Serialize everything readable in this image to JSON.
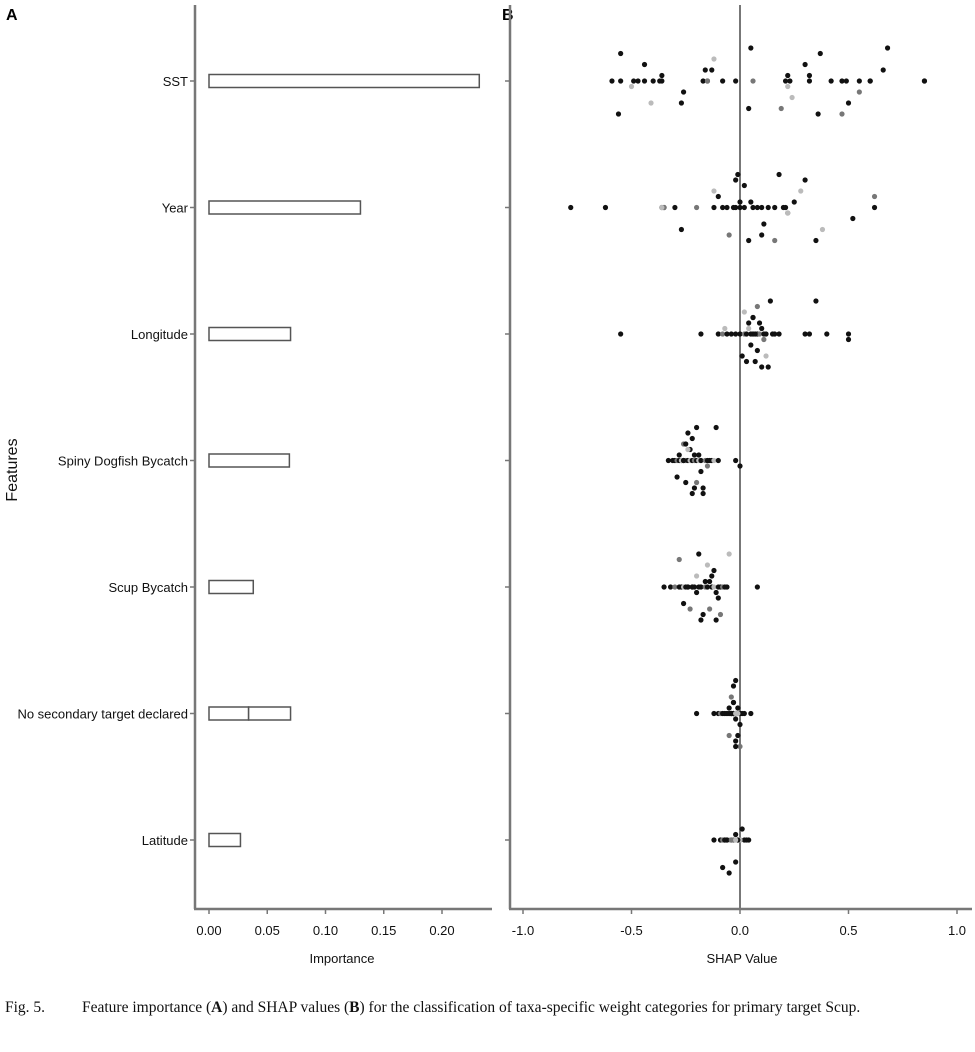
{
  "chart_data": [
    {
      "panel": "A",
      "type": "bar",
      "orientation": "horizontal",
      "xlabel": "Importance",
      "ylabel": "Features",
      "xlim": [
        0,
        0.235
      ],
      "xticks": [
        "0.00",
        "0.05",
        "0.10",
        "0.15",
        "0.20"
      ],
      "xtick_values": [
        0,
        0.05,
        0.1,
        0.15,
        0.2
      ],
      "categories": [
        "SST",
        "Year",
        "Longitude",
        "Spiny Dogfish Bycatch",
        "Scup Bycatch",
        "No secondary target declared",
        "Latitude"
      ],
      "values": [
        0.232,
        0.13,
        0.07,
        0.069,
        0.038,
        0.07,
        0.027
      ],
      "segments": [
        [
          0.232
        ],
        [
          0.13
        ],
        [
          0.07
        ],
        [
          0.069
        ],
        [
          0.038
        ],
        [
          0.034,
          0.036
        ],
        [
          0.027
        ]
      ]
    },
    {
      "panel": "B",
      "type": "scatter",
      "xlabel": "SHAP Value",
      "xlim": [
        -1.1,
        1.05
      ],
      "xticks": [
        "-1.0",
        "-0.5",
        "0.0",
        "0.5",
        "1.0"
      ],
      "xtick_values": [
        -1.0,
        -0.5,
        0.0,
        0.5,
        1.0
      ],
      "categories": [
        "SST",
        "Year",
        "Longitude",
        "Spiny Dogfish Bycatch",
        "Scup Bycatch",
        "No secondary target declared",
        "Latitude"
      ],
      "shades": {
        "k": "#111111",
        "g": "#777777",
        "l": "#bbbbbb"
      },
      "points": [
        [
          [
            -0.59,
            "k"
          ],
          [
            -0.55,
            "k"
          ],
          [
            -0.49,
            "k"
          ],
          [
            -0.47,
            "k"
          ],
          [
            -0.44,
            "k"
          ],
          [
            -0.4,
            "k"
          ],
          [
            -0.37,
            "k"
          ],
          [
            -0.36,
            "k"
          ],
          [
            -0.27,
            "k"
          ],
          [
            -0.17,
            "k"
          ],
          [
            -0.15,
            "k"
          ],
          [
            -0.13,
            "k"
          ],
          [
            -0.08,
            "k"
          ],
          [
            -0.02,
            "k"
          ],
          [
            0.04,
            "k"
          ],
          [
            0.06,
            "g"
          ],
          [
            0.21,
            "k"
          ],
          [
            0.22,
            "k"
          ],
          [
            0.23,
            "k"
          ],
          [
            0.32,
            "k"
          ],
          [
            0.36,
            "k"
          ],
          [
            0.42,
            "k"
          ],
          [
            0.47,
            "k"
          ],
          [
            0.49,
            "k"
          ],
          [
            0.55,
            "k"
          ],
          [
            0.6,
            "k"
          ],
          [
            0.68,
            "k"
          ],
          [
            0.85,
            "k"
          ],
          [
            0.85,
            "k"
          ],
          [
            -0.5,
            "l"
          ],
          [
            -0.36,
            "k"
          ],
          [
            -0.44,
            "k"
          ],
          [
            -0.55,
            "k"
          ],
          [
            -0.56,
            "k"
          ],
          [
            -0.41,
            "l"
          ],
          [
            -0.26,
            "k"
          ],
          [
            -0.15,
            "g"
          ],
          [
            -0.16,
            "k"
          ],
          [
            -0.12,
            "l"
          ],
          [
            0.05,
            "k"
          ],
          [
            0.19,
            "g"
          ],
          [
            0.24,
            "l"
          ],
          [
            0.22,
            "l"
          ],
          [
            0.32,
            "k"
          ],
          [
            0.3,
            "k"
          ],
          [
            0.37,
            "k"
          ],
          [
            0.47,
            "g"
          ],
          [
            0.5,
            "k"
          ],
          [
            0.55,
            "g"
          ],
          [
            0.6,
            "k"
          ],
          [
            0.66,
            "k"
          ]
        ],
        [
          [
            -0.78,
            "k"
          ],
          [
            -0.62,
            "l"
          ],
          [
            -0.62,
            "k"
          ],
          [
            -0.36,
            "k"
          ],
          [
            -0.35,
            "k"
          ],
          [
            -0.35,
            "g"
          ],
          [
            -0.36,
            "l"
          ],
          [
            -0.3,
            "k"
          ],
          [
            -0.27,
            "k"
          ],
          [
            -0.2,
            "g"
          ],
          [
            -0.12,
            "k"
          ],
          [
            -0.1,
            "k"
          ],
          [
            -0.08,
            "k"
          ],
          [
            -0.06,
            "k"
          ],
          [
            -0.05,
            "g"
          ],
          [
            -0.03,
            "k"
          ],
          [
            -0.02,
            "k"
          ],
          [
            0.0,
            "k"
          ],
          [
            0.0,
            "k"
          ],
          [
            0.02,
            "k"
          ],
          [
            0.04,
            "k"
          ],
          [
            0.06,
            "k"
          ],
          [
            0.08,
            "k"
          ],
          [
            0.1,
            "k"
          ],
          [
            0.13,
            "k"
          ],
          [
            0.16,
            "k"
          ],
          [
            0.18,
            "k"
          ],
          [
            0.2,
            "k"
          ],
          [
            0.21,
            "k"
          ],
          [
            0.22,
            "g"
          ],
          [
            0.25,
            "k"
          ],
          [
            0.28,
            "l"
          ],
          [
            0.3,
            "k"
          ],
          [
            0.35,
            "k"
          ],
          [
            0.38,
            "l"
          ],
          [
            0.52,
            "k"
          ],
          [
            0.62,
            "k"
          ],
          [
            0.62,
            "g"
          ],
          [
            0.02,
            "k"
          ],
          [
            -0.01,
            "k"
          ],
          [
            0.1,
            "k"
          ],
          [
            0.11,
            "k"
          ],
          [
            0.22,
            "l"
          ],
          [
            0.05,
            "k"
          ],
          [
            -0.12,
            "l"
          ],
          [
            -0.02,
            "k"
          ],
          [
            0.16,
            "g"
          ]
        ],
        [
          [
            -0.55,
            "k"
          ],
          [
            -0.18,
            "k"
          ],
          [
            -0.1,
            "k"
          ],
          [
            -0.08,
            "g"
          ],
          [
            -0.06,
            "k"
          ],
          [
            -0.04,
            "k"
          ],
          [
            -0.02,
            "k"
          ],
          [
            0.0,
            "k"
          ],
          [
            0.01,
            "k"
          ],
          [
            0.02,
            "g"
          ],
          [
            0.03,
            "k"
          ],
          [
            0.04,
            "k"
          ],
          [
            0.05,
            "k"
          ],
          [
            0.06,
            "k"
          ],
          [
            0.07,
            "k"
          ],
          [
            0.08,
            "k"
          ],
          [
            0.09,
            "g"
          ],
          [
            0.1,
            "k"
          ],
          [
            0.11,
            "k"
          ],
          [
            0.12,
            "k"
          ],
          [
            0.13,
            "k"
          ],
          [
            0.15,
            "k"
          ],
          [
            0.16,
            "k"
          ],
          [
            0.18,
            "k"
          ],
          [
            0.3,
            "k"
          ],
          [
            0.32,
            "k"
          ],
          [
            0.35,
            "k"
          ],
          [
            0.4,
            "k"
          ],
          [
            0.5,
            "k"
          ],
          [
            0.5,
            "k"
          ],
          [
            0.04,
            "l"
          ],
          [
            0.06,
            "k"
          ],
          [
            0.08,
            "g"
          ],
          [
            0.1,
            "k"
          ],
          [
            0.12,
            "l"
          ],
          [
            0.05,
            "k"
          ],
          [
            0.07,
            "k"
          ],
          [
            0.09,
            "k"
          ],
          [
            0.02,
            "l"
          ],
          [
            0.14,
            "k"
          ],
          [
            0.03,
            "k"
          ],
          [
            0.08,
            "k"
          ],
          [
            0.11,
            "g"
          ],
          [
            -0.07,
            "l"
          ],
          [
            0.06,
            "k"
          ]
        ],
        [
          [
            -0.33,
            "k"
          ],
          [
            -0.31,
            "k"
          ],
          [
            -0.3,
            "k"
          ],
          [
            -0.29,
            "g"
          ],
          [
            -0.28,
            "k"
          ],
          [
            -0.27,
            "k"
          ],
          [
            -0.27,
            "l"
          ],
          [
            -0.26,
            "k"
          ],
          [
            -0.25,
            "k"
          ],
          [
            -0.25,
            "g"
          ],
          [
            -0.24,
            "k"
          ],
          [
            -0.23,
            "k"
          ],
          [
            -0.23,
            "l"
          ],
          [
            -0.22,
            "k"
          ],
          [
            -0.21,
            "k"
          ],
          [
            -0.21,
            "g"
          ],
          [
            -0.2,
            "k"
          ],
          [
            -0.19,
            "k"
          ],
          [
            -0.19,
            "l"
          ],
          [
            -0.18,
            "k"
          ],
          [
            -0.17,
            "k"
          ],
          [
            -0.16,
            "g"
          ],
          [
            -0.15,
            "k"
          ],
          [
            -0.14,
            "k"
          ],
          [
            -0.13,
            "k"
          ],
          [
            -0.12,
            "l"
          ],
          [
            -0.11,
            "k"
          ],
          [
            -0.1,
            "k"
          ],
          [
            -0.02,
            "k"
          ],
          [
            0.0,
            "k"
          ],
          [
            -0.28,
            "k"
          ],
          [
            -0.26,
            "g"
          ],
          [
            -0.24,
            "k"
          ],
          [
            -0.22,
            "k"
          ],
          [
            -0.2,
            "g"
          ],
          [
            -0.18,
            "k"
          ],
          [
            -0.26,
            "k"
          ],
          [
            -0.24,
            "l"
          ],
          [
            -0.22,
            "k"
          ],
          [
            -0.2,
            "k"
          ],
          [
            -0.17,
            "k"
          ],
          [
            -0.29,
            "k"
          ],
          [
            -0.15,
            "g"
          ],
          [
            -0.21,
            "k"
          ],
          [
            -0.25,
            "k"
          ]
        ],
        [
          [
            -0.35,
            "k"
          ],
          [
            -0.32,
            "k"
          ],
          [
            -0.3,
            "g"
          ],
          [
            -0.28,
            "k"
          ],
          [
            -0.27,
            "k"
          ],
          [
            -0.26,
            "l"
          ],
          [
            -0.25,
            "k"
          ],
          [
            -0.24,
            "k"
          ],
          [
            -0.23,
            "g"
          ],
          [
            -0.22,
            "k"
          ],
          [
            -0.21,
            "k"
          ],
          [
            -0.2,
            "l"
          ],
          [
            -0.19,
            "k"
          ],
          [
            -0.18,
            "k"
          ],
          [
            -0.17,
            "k"
          ],
          [
            -0.16,
            "g"
          ],
          [
            -0.15,
            "k"
          ],
          [
            -0.14,
            "k"
          ],
          [
            -0.13,
            "k"
          ],
          [
            -0.12,
            "l"
          ],
          [
            -0.11,
            "k"
          ],
          [
            -0.1,
            "k"
          ],
          [
            -0.09,
            "k"
          ],
          [
            -0.08,
            "g"
          ],
          [
            -0.07,
            "k"
          ],
          [
            -0.06,
            "k"
          ],
          [
            -0.05,
            "l"
          ],
          [
            0.08,
            "k"
          ],
          [
            -0.24,
            "k"
          ],
          [
            -0.2,
            "k"
          ],
          [
            -0.16,
            "k"
          ],
          [
            -0.12,
            "k"
          ],
          [
            -0.28,
            "g"
          ],
          [
            -0.18,
            "k"
          ],
          [
            -0.14,
            "g"
          ],
          [
            -0.1,
            "k"
          ],
          [
            -0.22,
            "k"
          ],
          [
            -0.13,
            "k"
          ],
          [
            -0.15,
            "l"
          ],
          [
            -0.19,
            "k"
          ],
          [
            -0.09,
            "g"
          ],
          [
            -0.26,
            "k"
          ],
          [
            -0.11,
            "k"
          ]
        ],
        [
          [
            -0.2,
            "k"
          ],
          [
            -0.12,
            "k"
          ],
          [
            -0.1,
            "k"
          ],
          [
            -0.09,
            "g"
          ],
          [
            -0.08,
            "k"
          ],
          [
            -0.07,
            "k"
          ],
          [
            -0.06,
            "k"
          ],
          [
            -0.05,
            "k"
          ],
          [
            -0.05,
            "g"
          ],
          [
            -0.04,
            "k"
          ],
          [
            -0.04,
            "k"
          ],
          [
            -0.03,
            "k"
          ],
          [
            -0.03,
            "l"
          ],
          [
            -0.03,
            "k"
          ],
          [
            -0.02,
            "k"
          ],
          [
            -0.02,
            "g"
          ],
          [
            -0.02,
            "k"
          ],
          [
            -0.01,
            "k"
          ],
          [
            -0.01,
            "k"
          ],
          [
            0.0,
            "k"
          ],
          [
            0.0,
            "g"
          ],
          [
            0.01,
            "k"
          ],
          [
            0.02,
            "k"
          ],
          [
            0.05,
            "k"
          ],
          [
            -0.04,
            "k"
          ],
          [
            -0.03,
            "k"
          ],
          [
            -0.02,
            "k"
          ],
          [
            -0.01,
            "l"
          ],
          [
            -0.03,
            "k"
          ],
          [
            -0.02,
            "k"
          ],
          [
            -0.05,
            "k"
          ],
          [
            -0.04,
            "g"
          ],
          [
            -0.03,
            "k"
          ],
          [
            -0.02,
            "k"
          ],
          [
            -0.01,
            "k"
          ],
          [
            0.0,
            "k"
          ],
          [
            -0.02,
            "l"
          ],
          [
            -0.03,
            "k"
          ]
        ],
        [
          [
            -0.12,
            "k"
          ],
          [
            -0.09,
            "k"
          ],
          [
            -0.08,
            "g"
          ],
          [
            -0.07,
            "k"
          ],
          [
            -0.06,
            "k"
          ],
          [
            -0.05,
            "l"
          ],
          [
            -0.04,
            "k"
          ],
          [
            -0.03,
            "k"
          ],
          [
            -0.02,
            "k"
          ],
          [
            -0.01,
            "g"
          ],
          [
            0.0,
            "k"
          ],
          [
            0.01,
            "k"
          ],
          [
            0.02,
            "k"
          ],
          [
            0.04,
            "k"
          ],
          [
            -0.08,
            "k"
          ],
          [
            -0.06,
            "k"
          ],
          [
            -0.04,
            "g"
          ],
          [
            -0.02,
            "k"
          ],
          [
            0.0,
            "l"
          ],
          [
            -0.07,
            "k"
          ],
          [
            -0.05,
            "k"
          ],
          [
            -0.03,
            "g"
          ],
          [
            -0.01,
            "k"
          ],
          [
            -0.02,
            "l"
          ],
          [
            0.03,
            "k"
          ]
        ]
      ]
    }
  ],
  "panel_labels": [
    "A",
    "B"
  ],
  "caption": {
    "number": "Fig. 5.",
    "parts": [
      "Feature importance (",
      "A",
      ") and SHAP values (",
      "B",
      ") for the classification of taxa-specific weight categories for primary target Scup."
    ]
  }
}
